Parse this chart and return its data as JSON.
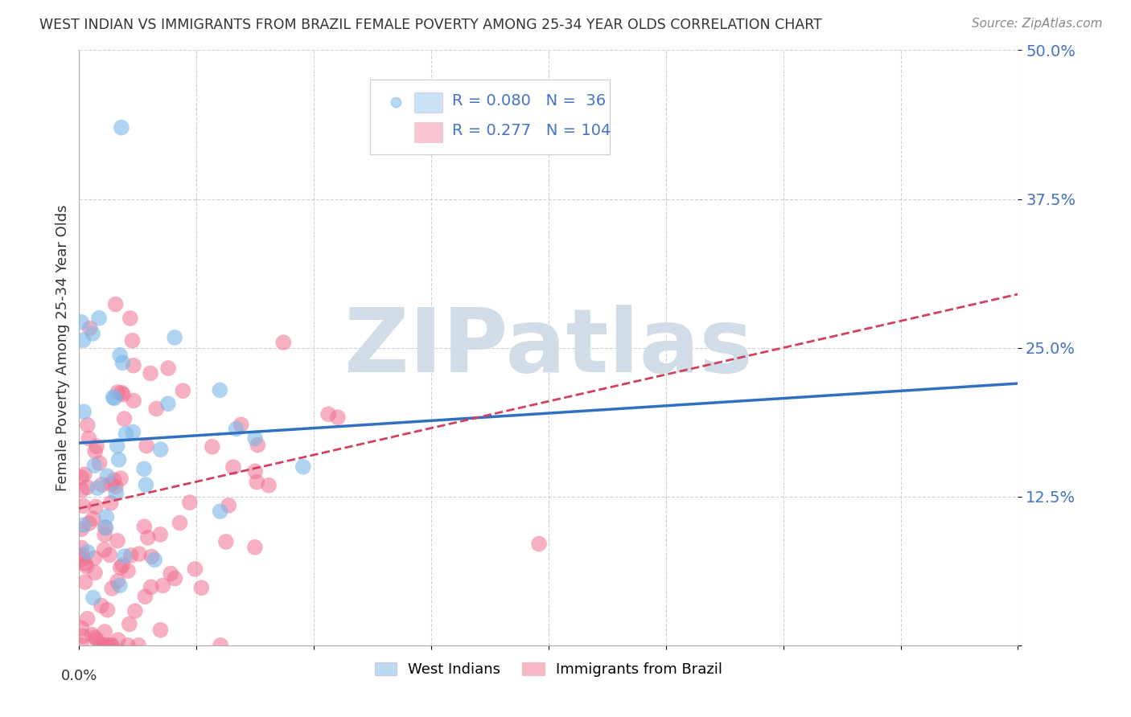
{
  "title": "WEST INDIAN VS IMMIGRANTS FROM BRAZIL FEMALE POVERTY AMONG 25-34 YEAR OLDS CORRELATION CHART",
  "source": "Source: ZipAtlas.com",
  "ylabel": "Female Poverty Among 25-34 Year Olds",
  "y_ticks": [
    0.0,
    0.125,
    0.25,
    0.375,
    0.5
  ],
  "y_tick_labels": [
    "",
    "12.5%",
    "25.0%",
    "37.5%",
    "50.0%"
  ],
  "legend_blue_r": "0.080",
  "legend_blue_n": "36",
  "legend_pink_r": "0.277",
  "legend_pink_n": "104",
  "legend_blue_label": "West Indians",
  "legend_pink_label": "Immigrants from Brazil",
  "blue_color": "#7ab8e8",
  "pink_color": "#f07090",
  "trend_blue_color": "#3070c0",
  "trend_pink_color": "#d04060",
  "tick_color": "#4472c4",
  "watermark_color": "#d0dce8",
  "background_color": "#ffffff",
  "grid_color": "#cccccc",
  "title_color": "#333333",
  "source_color": "#888888",
  "xlim": [
    0.0,
    0.4
  ],
  "ylim": [
    0.0,
    0.5
  ],
  "trend_blue_y0": 0.17,
  "trend_blue_y1": 0.22,
  "trend_pink_y0": 0.115,
  "trend_pink_y1": 0.295
}
